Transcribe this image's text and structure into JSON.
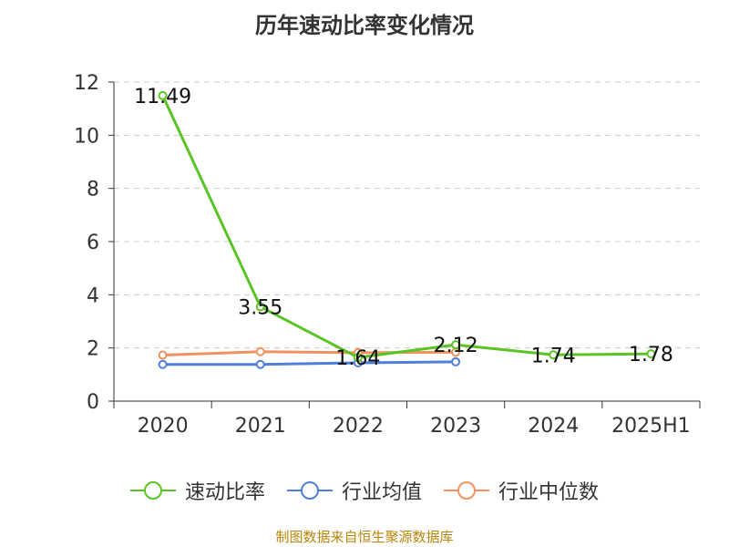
{
  "chart_data": {
    "type": "line",
    "title": "历年速动比率变化情况",
    "categories": [
      "2020",
      "2021",
      "2022",
      "2023",
      "2024",
      "2025H1"
    ],
    "ylim": [
      0,
      12
    ],
    "yticks": [
      0,
      2,
      4,
      6,
      8,
      10,
      12
    ],
    "grid": true,
    "legend_position": "bottom",
    "series": [
      {
        "name": "速动比率",
        "color": "#5bc425",
        "values": [
          11.49,
          3.55,
          1.64,
          2.12,
          1.74,
          1.78
        ],
        "labels": [
          "11.49",
          "3.55",
          "1.64",
          "2.12",
          "1.74",
          "1.78"
        ]
      },
      {
        "name": "行业均值",
        "color": "#4f7fdb",
        "values": [
          1.38,
          1.38,
          1.44,
          1.48,
          null,
          null
        ]
      },
      {
        "name": "行业中位数",
        "color": "#f0935e",
        "values": [
          1.73,
          1.86,
          1.82,
          1.84,
          null,
          null
        ]
      }
    ]
  },
  "source": "制图数据来自恒生聚源数据库"
}
